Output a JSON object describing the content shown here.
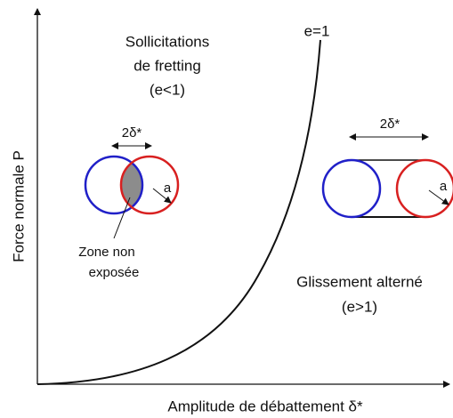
{
  "y_axis_label": "Force normale P",
  "x_axis_label": "Amplitude de débattement δ*",
  "boundary_label": "e=1",
  "fretting": {
    "lines": [
      "Sollicitations",
      "de fretting",
      "(e<1)"
    ],
    "displacement": "2δ*",
    "radius": "a",
    "zone_lines": [
      "Zone non",
      "exposée"
    ]
  },
  "sliding": {
    "lines": [
      "Glissement alterné",
      "(e>1)"
    ],
    "displacement": "2δ*",
    "radius": "a"
  }
}
